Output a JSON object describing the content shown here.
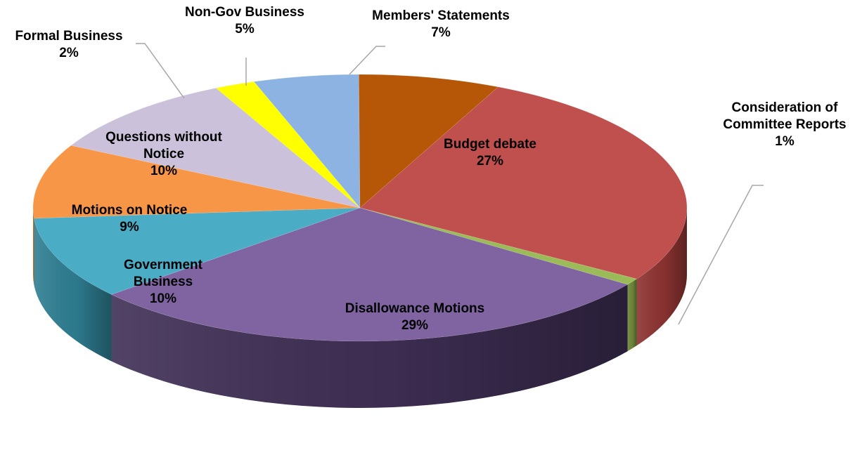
{
  "chart_data": {
    "type": "pie",
    "title": "",
    "legend": "none",
    "series": [
      {
        "label_lines": [
          "Budget debate"
        ],
        "pct_label": "27%",
        "value": 27.0,
        "color": "#c0504d",
        "side_color": "#8e3432"
      },
      {
        "label_lines": [
          "Consideration of",
          "Committee Reports"
        ],
        "pct_label": "1%",
        "value": 0.8,
        "color": "#9bbb59",
        "side_color": "#6f8a3a"
      },
      {
        "label_lines": [
          "Disallowance Motions"
        ],
        "pct_label": "29%",
        "value": 29.0,
        "color": "#8064a2",
        "side_color": "#3f2f55"
      },
      {
        "label_lines": [
          "Government",
          "Business"
        ],
        "pct_label": "10%",
        "value": 10.0,
        "color": "#4bacc6",
        "side_color": "#2f7f93"
      },
      {
        "label_lines": [
          "Motions on Notice"
        ],
        "pct_label": "9%",
        "value": 9.0,
        "color": "#f79646",
        "side_color": "#c06a25"
      },
      {
        "label_lines": [
          "Questions without",
          "Notice"
        ],
        "pct_label": "10%",
        "value": 10.0,
        "color": "#ccc1da",
        "side_color": "#a396b5"
      },
      {
        "label_lines": [
          "Formal Business"
        ],
        "pct_label": "2%",
        "value": 2.0,
        "color": "#ffff00",
        "side_color": "#c8c800"
      },
      {
        "label_lines": [
          "Non-Gov Business"
        ],
        "pct_label": "5%",
        "value": 5.2,
        "color": "#8db3e2",
        "side_color": "#5f86b8"
      },
      {
        "label_lines": [
          "Members' Statements"
        ],
        "pct_label": "7%",
        "value": 7.0,
        "color": "#b65708",
        "side_color": "#7a3a05"
      }
    ]
  }
}
